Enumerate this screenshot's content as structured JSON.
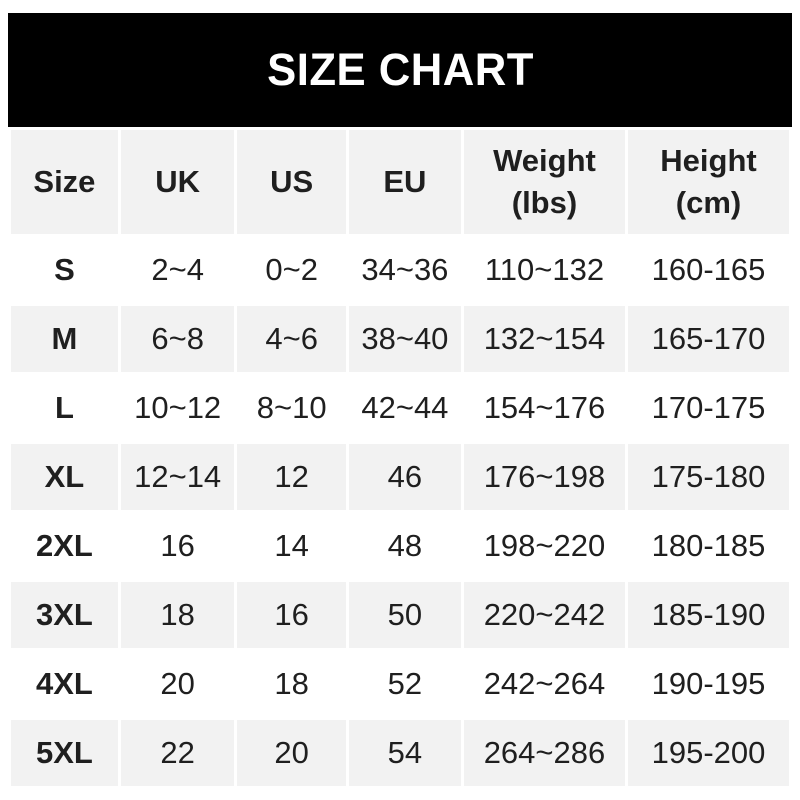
{
  "banner": {
    "title": "SIZE CHART"
  },
  "colors": {
    "banner_bg": "#000000",
    "banner_text": "#ffffff",
    "alt_row_bg": "#f2f2f2",
    "text": "#1f1f1f",
    "background": "#ffffff"
  },
  "chart_data": {
    "type": "table",
    "title": "SIZE CHART",
    "columns": [
      {
        "key": "size",
        "label": "Size"
      },
      {
        "key": "uk",
        "label": "UK"
      },
      {
        "key": "us",
        "label": "US"
      },
      {
        "key": "eu",
        "label": "EU"
      },
      {
        "key": "weight",
        "label": "Weight\n(lbs)"
      },
      {
        "key": "height",
        "label": "Height\n(cm)"
      }
    ],
    "rows": [
      {
        "size": "S",
        "uk": "2~4",
        "us": "0~2",
        "eu": "34~36",
        "weight": "110~132",
        "height": "160-165"
      },
      {
        "size": "M",
        "uk": "6~8",
        "us": "4~6",
        "eu": "38~40",
        "weight": "132~154",
        "height": "165-170"
      },
      {
        "size": "L",
        "uk": "10~12",
        "us": "8~10",
        "eu": "42~44",
        "weight": "154~176",
        "height": "170-175"
      },
      {
        "size": "XL",
        "uk": "12~14",
        "us": "12",
        "eu": "46",
        "weight": "176~198",
        "height": "175-180"
      },
      {
        "size": "2XL",
        "uk": "16",
        "us": "14",
        "eu": "48",
        "weight": "198~220",
        "height": "180-185"
      },
      {
        "size": "3XL",
        "uk": "18",
        "us": "16",
        "eu": "50",
        "weight": "220~242",
        "height": "185-190"
      },
      {
        "size": "4XL",
        "uk": "20",
        "us": "18",
        "eu": "52",
        "weight": "242~264",
        "height": "190-195"
      },
      {
        "size": "5XL",
        "uk": "22",
        "us": "20",
        "eu": "54",
        "weight": "264~286",
        "height": "195-200"
      }
    ]
  }
}
